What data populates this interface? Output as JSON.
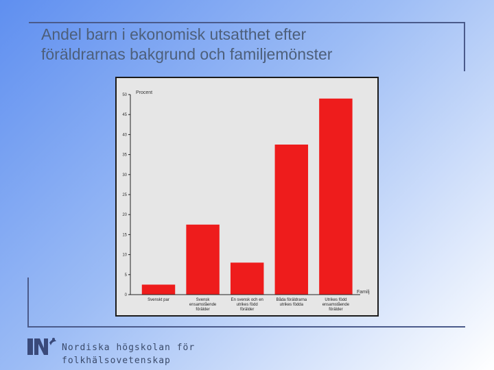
{
  "slide": {
    "title_line1": "Andel barn i ekonomisk utsatthet efter",
    "title_line2": "föräldrarnas  bakgrund och familjemönster"
  },
  "footer": {
    "line1": "Nordiska högskolan för",
    "line2": "folkhälsovetenskap"
  },
  "colors": {
    "bar": "#ee1c1c",
    "chart_background": "#e6e6e6"
  },
  "chart_data": {
    "type": "bar",
    "categories": [
      [
        "Svenskt par"
      ],
      [
        "Svensk",
        "ensamstående",
        "förälder"
      ],
      [
        "En svensk och en",
        "utrikes född",
        "förälder"
      ],
      [
        "Båda föräldrarna",
        "utrikes födda"
      ],
      [
        "Utrikes född",
        "ensamstående",
        "förälder"
      ]
    ],
    "values": [
      2.5,
      17.5,
      8,
      37.5,
      49
    ],
    "title": "",
    "ylabel": "Procent",
    "xlabel": "Familj",
    "ylim": [
      0,
      50
    ],
    "yticks": [
      0,
      5,
      10,
      15,
      20,
      25,
      30,
      35,
      40,
      45,
      50
    ],
    "grid": false
  }
}
